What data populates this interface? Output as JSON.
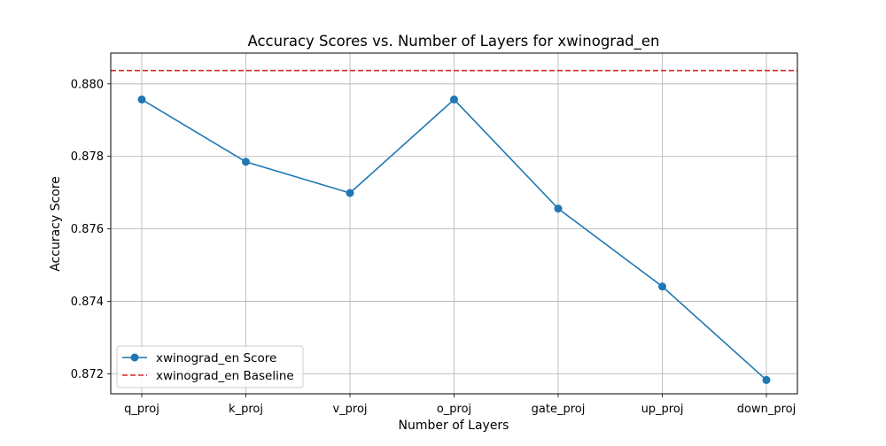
{
  "chart_data": {
    "type": "line",
    "title": "Accuracy Scores vs. Number of Layers for xwinograd_en",
    "xlabel": "Number of Layers",
    "ylabel": "Accuracy Score",
    "categories": [
      "q_proj",
      "k_proj",
      "v_proj",
      "o_proj",
      "gate_proj",
      "up_proj",
      "down_proj"
    ],
    "series": [
      {
        "name": "xwinograd_en Score",
        "values": [
          0.87957,
          0.87785,
          0.87699,
          0.87957,
          0.87656,
          0.87441,
          0.87183
        ],
        "color": "#1f77b4",
        "style": "solid",
        "marker": "circle"
      }
    ],
    "baseline": {
      "name": "xwinograd_en Baseline",
      "value": 0.88037,
      "color": "#d62728",
      "style": "dashed"
    },
    "ylim": [
      0.87145,
      0.88085
    ],
    "yticks": [
      0.872,
      0.874,
      0.876,
      0.878,
      0.88
    ],
    "ytick_labels": [
      "0.872",
      "0.874",
      "0.876",
      "0.878",
      "0.880"
    ],
    "grid": true,
    "legend_position": "lower-left"
  }
}
